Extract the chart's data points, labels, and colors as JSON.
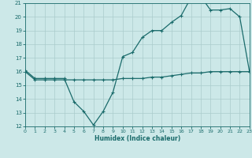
{
  "xlabel": "Humidex (Indice chaleur)",
  "bg_color": "#cce8e8",
  "line_color": "#1a6b6b",
  "grid_color": "#aacccc",
  "xmin": 0,
  "xmax": 23,
  "ymin": 12,
  "ymax": 21,
  "yticks": [
    12,
    13,
    14,
    15,
    16,
    17,
    18,
    19,
    20,
    21
  ],
  "xticks": [
    0,
    1,
    2,
    3,
    4,
    5,
    6,
    7,
    8,
    9,
    10,
    11,
    12,
    13,
    14,
    15,
    16,
    17,
    18,
    19,
    20,
    21,
    22,
    23
  ],
  "series1_x": [
    0,
    1,
    2,
    3,
    4,
    5,
    6,
    7,
    8,
    9,
    10,
    11,
    12,
    13,
    14,
    15,
    16,
    17,
    18,
    19,
    20,
    21,
    22,
    23
  ],
  "series1_y": [
    16.1,
    15.5,
    15.5,
    15.5,
    15.5,
    13.8,
    13.1,
    12.1,
    13.1,
    14.5,
    17.1,
    17.4,
    18.5,
    19.0,
    19.0,
    19.6,
    20.1,
    21.4,
    21.5,
    20.5,
    20.5,
    20.6,
    20.0,
    16.0
  ],
  "series2_x": [
    0,
    1,
    2,
    3,
    4,
    5,
    6,
    7,
    8,
    9,
    10,
    11,
    12,
    13,
    14,
    15,
    16,
    17,
    18,
    19,
    20,
    21,
    22,
    23
  ],
  "series2_y": [
    16.0,
    15.4,
    15.4,
    15.4,
    15.4,
    15.4,
    15.4,
    15.4,
    15.4,
    15.4,
    15.5,
    15.5,
    15.5,
    15.6,
    15.6,
    15.7,
    15.8,
    15.9,
    15.9,
    16.0,
    16.0,
    16.0,
    16.0,
    16.0
  ]
}
